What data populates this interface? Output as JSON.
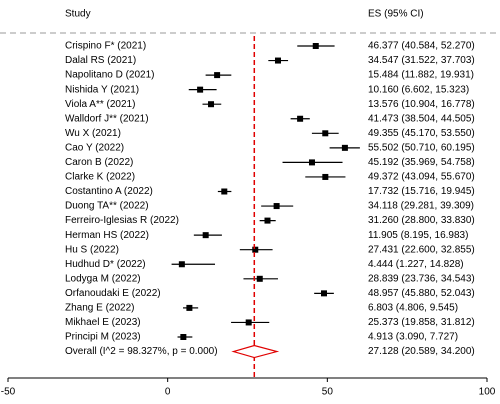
{
  "chart_data": {
    "type": "forest",
    "columns": [
      "Study",
      "ES (95% CI)"
    ],
    "categories": [
      "Crispino F* (2021)",
      "Dalal RS (2021)",
      "Napolitano D (2021)",
      "Nishida Y (2021)",
      "Viola A** (2021)",
      "Walldorf J** (2021)",
      "Wu X (2021)",
      "Cao Y (2022)",
      "Caron B (2022)",
      "Clarke K (2022)",
      "Costantino A (2022)",
      "Duong TA** (2022)",
      "Ferreiro-Iglesias R (2022)",
      "Herman HS (2022)",
      "Hu S (2022)",
      "Hudhud D* (2022)",
      "Lodyga M (2022)",
      "Orfanoudaki E (2022)",
      "Zhang E (2022)",
      "Mikhael E (2023)",
      "Principi M (2023)"
    ],
    "values": [
      46.377,
      34.547,
      15.484,
      10.16,
      13.576,
      41.473,
      49.355,
      55.502,
      45.192,
      49.372,
      17.732,
      34.118,
      31.26,
      11.905,
      27.431,
      4.444,
      28.839,
      48.957,
      6.803,
      25.373,
      4.913
    ],
    "lower": [
      40.584,
      31.522,
      11.882,
      6.602,
      10.904,
      38.504,
      45.17,
      50.71,
      35.969,
      43.094,
      15.716,
      29.281,
      28.8,
      8.195,
      22.6,
      1.227,
      23.736,
      45.88,
      4.806,
      19.858,
      3.09
    ],
    "upper": [
      52.27,
      37.703,
      19.931,
      15.323,
      16.778,
      44.505,
      53.55,
      60.195,
      54.758,
      55.67,
      19.945,
      39.309,
      33.83,
      16.983,
      32.855,
      14.828,
      34.543,
      52.043,
      9.545,
      31.812,
      7.727
    ],
    "value_labels": [
      "46.377 (40.584, 52.270)",
      "34.547 (31.522, 37.703)",
      "15.484 (11.882, 19.931)",
      "10.160 (6.602, 15.323)",
      "13.576 (10.904, 16.778)",
      "41.473 (38.504, 44.505)",
      "49.355 (45.170, 53.550)",
      "55.502 (50.710, 60.195)",
      "45.192 (35.969, 54.758)",
      "49.372 (43.094, 55.670)",
      "17.732 (15.716, 19.945)",
      "34.118 (29.281, 39.309)",
      "31.260 (28.800, 33.830)",
      "11.905 (8.195, 16.983)",
      "27.431 (22.600, 32.855)",
      "4.444 (1.227, 14.828)",
      "28.839 (23.736, 34.543)",
      "48.957 (45.880, 52.043)",
      "6.803 (4.806, 9.545)",
      "25.373 (19.858, 31.812)",
      "4.913 (3.090, 7.727)"
    ],
    "overall": {
      "name": "Overall  (I^2 = 98.327%, p = 0.000)",
      "value": 27.128,
      "lower": 20.589,
      "upper": 34.2,
      "value_label": "27.128 (20.589, 34.200)",
      "color": "#e00000"
    },
    "color": "#000000",
    "xlim": [
      -50,
      100
    ],
    "xticks": [
      -50,
      0,
      50,
      100
    ]
  }
}
